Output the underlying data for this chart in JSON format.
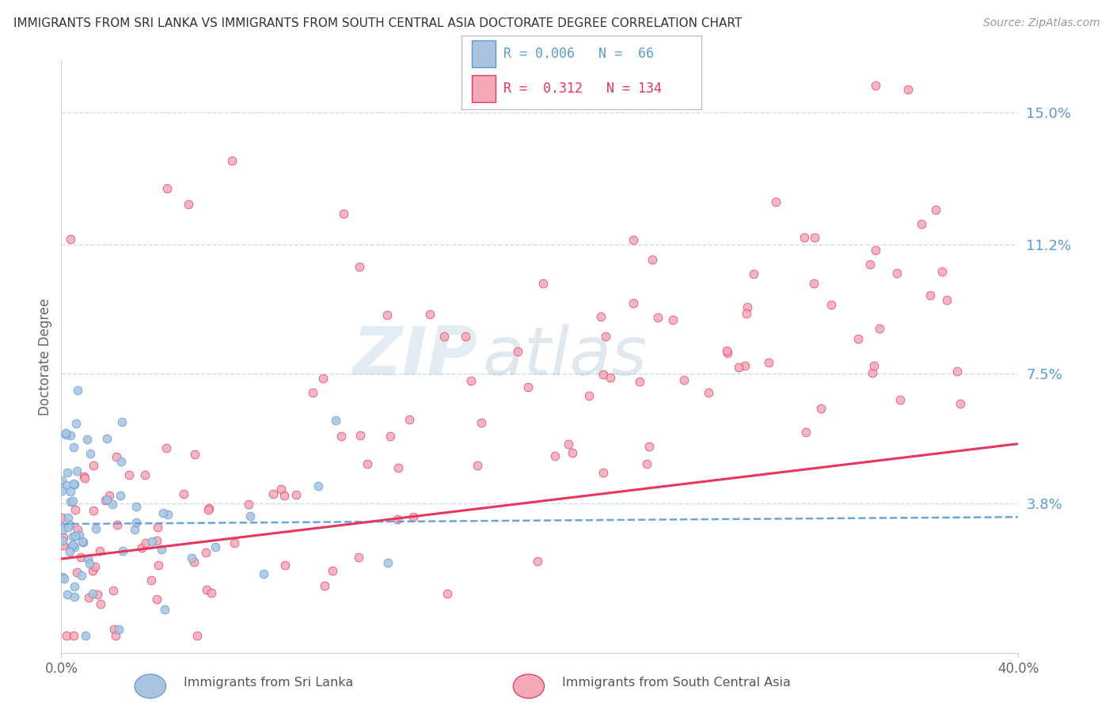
{
  "title": "IMMIGRANTS FROM SRI LANKA VS IMMIGRANTS FROM SOUTH CENTRAL ASIA DOCTORATE DEGREE CORRELATION CHART",
  "source": "Source: ZipAtlas.com",
  "ylabel": "Doctorate Degree",
  "legend_label1": "Immigrants from Sri Lanka",
  "legend_label2": "Immigrants from South Central Asia",
  "R1": 0.006,
  "N1": 66,
  "R2": 0.312,
  "N2": 134,
  "color1": "#aac4e0",
  "color2": "#f5a8b8",
  "line_color1": "#5b9bd5",
  "line_color2": "#e8365d",
  "right_yticks": [
    0.038,
    0.075,
    0.112,
    0.15
  ],
  "right_yticklabels": [
    "3.8%",
    "7.5%",
    "11.2%",
    "15.0%"
  ],
  "xlim": [
    0.0,
    0.4
  ],
  "ylim": [
    -0.005,
    0.165
  ],
  "watermark_zip": "ZIP",
  "watermark_atlas": "atlas",
  "background_color": "#ffffff",
  "grid_color": "#c8d8e8",
  "title_color": "#333333",
  "source_color": "#999999",
  "axis_color": "#666666",
  "seed": 7
}
